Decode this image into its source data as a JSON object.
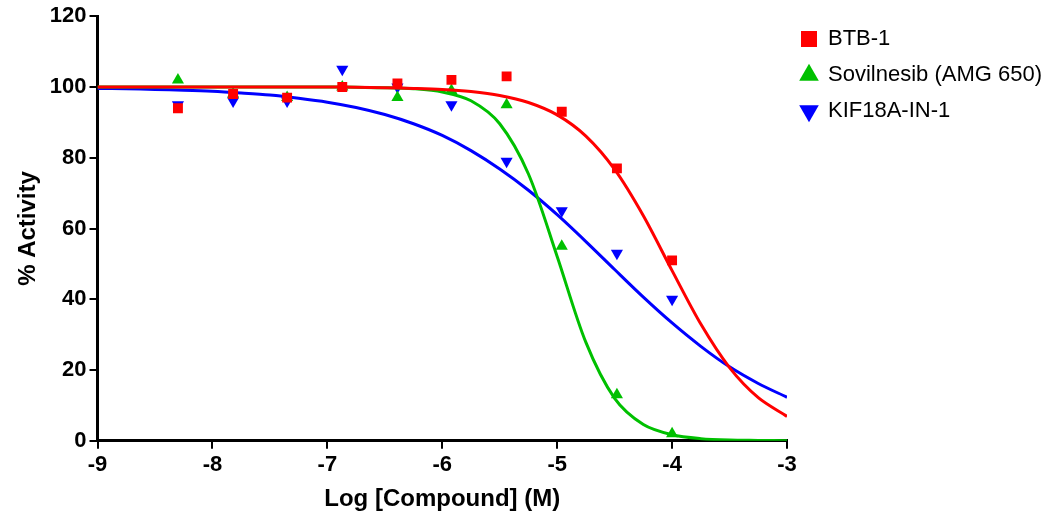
{
  "chart_data": {
    "type": "scatter",
    "x_label": "Log [Compound] (M)",
    "y_label": "% Activity",
    "xlim": [
      -9,
      -3
    ],
    "xticks": [
      -9,
      -8,
      -7,
      -6,
      -5,
      -4,
      -3
    ],
    "ylim": [
      0,
      120
    ],
    "yticks": [
      0,
      20,
      40,
      60,
      80,
      100,
      120
    ],
    "grid": false,
    "legend": "right",
    "x": [
      -8.3,
      -7.82,
      -7.35,
      -6.87,
      -6.39,
      -5.92,
      -5.44,
      -4.96,
      -4.48,
      -4.0
    ],
    "fit_x": [
      -9,
      -8.75,
      -8.5,
      -8.25,
      -8,
      -7.75,
      -7.5,
      -7.25,
      -7,
      -6.75,
      -6.5,
      -6.25,
      -6,
      -5.75,
      -5.5,
      -5.25,
      -5,
      -4.75,
      -4.5,
      -4.25,
      -4,
      -3.75,
      -3.5,
      -3.25,
      -3
    ],
    "series": [
      {
        "name": "BTB-1",
        "color": "#ff0000",
        "marker": "square",
        "values": [
          94,
          98,
          97,
          100,
          101,
          102,
          103,
          93,
          77,
          51
        ],
        "fit": [
          100,
          100,
          100,
          100,
          100,
          100,
          100,
          100,
          100,
          99.9,
          99.8,
          99.6,
          99.3,
          98.7,
          97.6,
          95.6,
          92.1,
          86.1,
          76.7,
          63.6,
          48.1,
          33,
          20.7,
          12.2,
          6.9
        ]
      },
      {
        "name": "Sovilnesib (AMG 650)",
        "color": "#00c000",
        "marker": "triangle",
        "values": [
          102,
          98,
          97,
          100,
          97,
          99,
          95,
          55,
          13,
          2
        ],
        "fit": [
          100,
          100,
          100,
          100,
          100,
          100,
          100,
          100,
          100,
          99.9,
          99.8,
          99.5,
          98.6,
          96.1,
          89.6,
          75.4,
          52.1,
          27.8,
          12,
          4.6,
          1.7,
          0.6,
          0.2,
          0.1,
          0
        ]
      },
      {
        "name": "KIF18A-IN-1",
        "color": "#0000ff",
        "marker": "triangle-down",
        "values": [
          95,
          96,
          96,
          105,
          100,
          95,
          79,
          65,
          53,
          40
        ],
        "fit": [
          99.6,
          99.5,
          99.3,
          99.1,
          98.8,
          98.3,
          97.7,
          96.8,
          95.7,
          94.2,
          92.2,
          89.6,
          86.3,
          82,
          76.8,
          70.8,
          63.9,
          56.3,
          48.4,
          40.6,
          33.3,
          26.7,
          20.9,
          16.2,
          12.3
        ]
      }
    ]
  }
}
